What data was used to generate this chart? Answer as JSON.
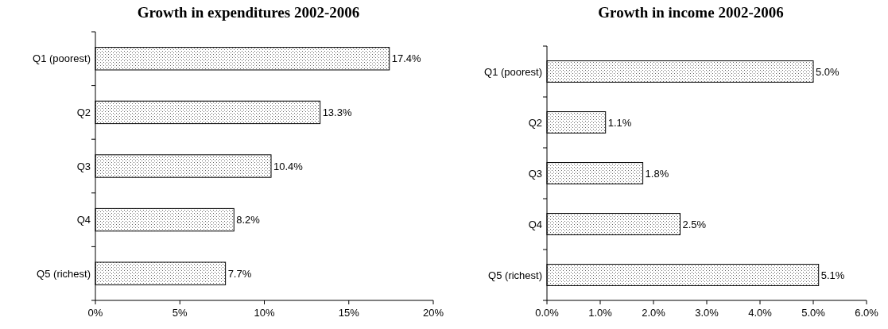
{
  "chart_data": [
    {
      "type": "bar",
      "orientation": "horizontal",
      "title": "Growth in expenditures 2002-2006",
      "categories": [
        "Q1 (poorest)",
        "Q2",
        "Q3",
        "Q4",
        "Q5 (richest)"
      ],
      "values": [
        17.4,
        13.3,
        10.4,
        8.2,
        7.7
      ],
      "value_labels": [
        "17.4%",
        "13.3%",
        "10.4%",
        "8.2%",
        "7.7%"
      ],
      "color": "#000000",
      "xlim": [
        0,
        20
      ],
      "xticks": [
        {
          "value": 0,
          "label": "0%"
        },
        {
          "value": 5,
          "label": "5%"
        },
        {
          "value": 10,
          "label": "10%"
        },
        {
          "value": 15,
          "label": "15%"
        },
        {
          "value": 20,
          "label": "20%"
        }
      ],
      "grid": false
    },
    {
      "type": "bar",
      "orientation": "horizontal",
      "title": "Growth in income 2002-2006",
      "categories": [
        "Q1 (poorest)",
        "Q2",
        "Q3",
        "Q4",
        "Q5 (richest)"
      ],
      "values": [
        5.0,
        1.1,
        1.8,
        2.5,
        5.1
      ],
      "value_labels": [
        "5.0%",
        "1.1%",
        "1.8%",
        "2.5%",
        "5.1%"
      ],
      "color": "#000000",
      "xlim": [
        0,
        6
      ],
      "xticks": [
        {
          "value": 0,
          "label": "0.0%"
        },
        {
          "value": 1,
          "label": "1.0%"
        },
        {
          "value": 2,
          "label": "2.0%"
        },
        {
          "value": 3,
          "label": "3.0%"
        },
        {
          "value": 4,
          "label": "4.0%"
        },
        {
          "value": 5,
          "label": "5.0%"
        },
        {
          "value": 6,
          "label": "6.0%"
        }
      ],
      "grid": false
    }
  ]
}
